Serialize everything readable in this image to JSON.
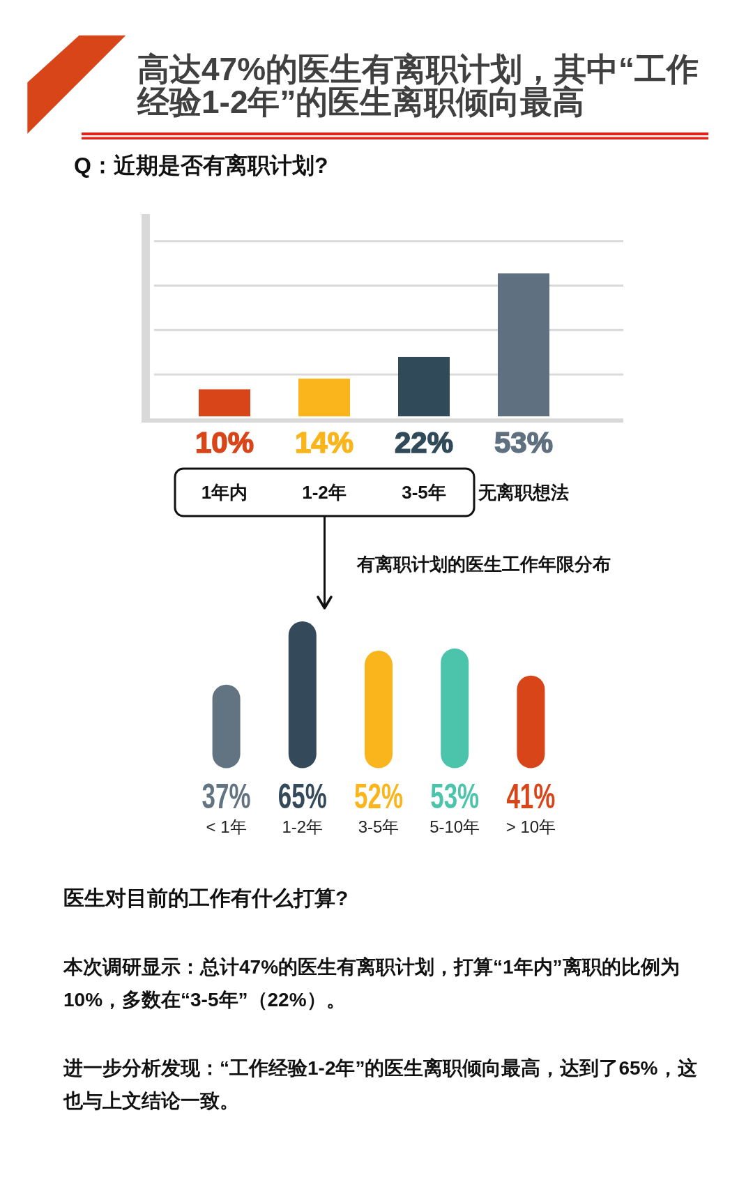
{
  "chart_data": [
    {
      "type": "bar",
      "title": "高达47%的医生有离职计划，其中“工作经验1-2年”的医生离职倾向最高",
      "subtitle": "Q：近期是否有离职计划?",
      "categories": [
        "1年内",
        "1-2年",
        "3-5年",
        "无离职想法"
      ],
      "values": [
        10,
        14,
        22,
        53
      ],
      "value_labels": [
        "10%",
        "14%",
        "22%",
        "53%"
      ],
      "colors": [
        "#d84519",
        "#f9b51b",
        "#314a5a",
        "#5f7080"
      ],
      "ylim": [
        0,
        75
      ],
      "yticks": [
        {
          "value": 15.5,
          "label": null
        },
        {
          "value": 32,
          "label": null
        },
        {
          "value": 48.5,
          "label": null
        },
        {
          "value": 65,
          "label": null
        }
      ],
      "grid": "y",
      "tick_labels": "x"
    },
    {
      "type": "bar",
      "title": "有离职计划的医生工作年限分布",
      "categories": [
        "< 1年",
        "1-2年",
        "3-5年",
        "5-10年",
        "> 10年"
      ],
      "values": [
        37,
        65,
        52,
        53,
        41
      ],
      "value_labels": [
        "37%",
        "65%",
        "52%",
        "53%",
        "41%"
      ],
      "colors": [
        "#627482",
        "#34495a",
        "#f9b51b",
        "#4cc4ab",
        "#d84519"
      ],
      "annotations": [
        "医生对目前的工作有什么打算?",
        "本次调研显示：总计47%的医生有离职计划，打算“1年内”离职的比例为10%，多数在“3-5年”（22%）。",
        "进一步分析发现：“工作经验1-2年”的医生离职倾向最高，达到了65%，这也与上文结论一致。"
      ]
    }
  ]
}
